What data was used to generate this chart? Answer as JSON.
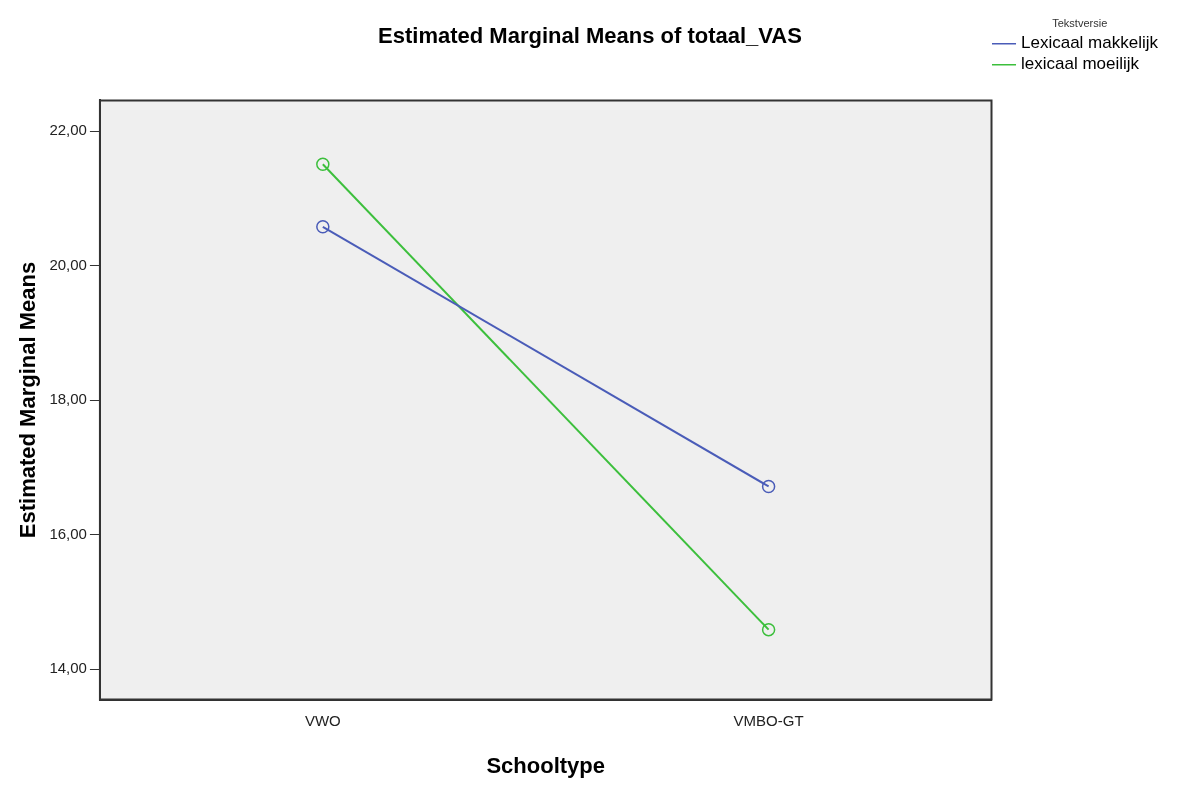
{
  "chart_data": {
    "type": "line",
    "title": "Estimated Marginal Means of totaal_VAS",
    "xlabel": "Schooltype",
    "ylabel": "Estimated Marginal Means",
    "legend_title": "Tekstversie",
    "categories": [
      "VWO",
      "VMBO-GT"
    ],
    "series": [
      {
        "name": "Lexicaal makkelijk",
        "color": "#4a5cb8",
        "values": [
          20.58,
          16.72
        ]
      },
      {
        "name": "lexicaal moeilijk",
        "color": "#3cbf3c",
        "values": [
          21.51,
          14.59
        ]
      }
    ],
    "ylim": [
      13.55,
      22.46
    ],
    "yticks": [
      {
        "value": 14,
        "label": "14,00"
      },
      {
        "value": 16,
        "label": "16,00"
      },
      {
        "value": 18,
        "label": "18,00"
      },
      {
        "value": 20,
        "label": "20,00"
      },
      {
        "value": 22,
        "label": "22,00"
      }
    ],
    "grid": false,
    "legend": "top right",
    "marker": "circle",
    "line_style": "solid"
  }
}
